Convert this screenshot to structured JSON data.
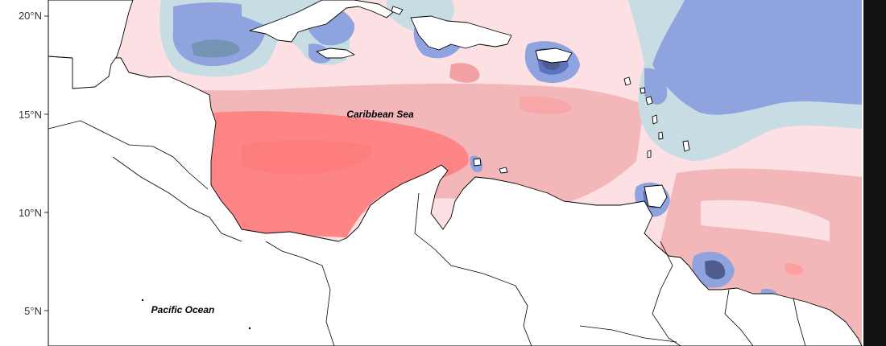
{
  "map": {
    "latitude_ticks": [
      "20°N",
      "15°N",
      "10°N",
      "5°N"
    ],
    "labels": {
      "caribbean": "Caribbean Sea",
      "pacific": "Pacific Ocean"
    },
    "colors": {
      "background": "#ffffff",
      "frame": "#000000",
      "pos_1": "#fde0e3",
      "pos_2": "#f3b7b9",
      "pos_3": "#fe8585",
      "neg_1": "#c7dde3",
      "neg_2": "#8fa3df",
      "neg_3": "#5a74c0",
      "neg_4": "#4f5c8e",
      "land": "#ffffff",
      "coast": "#000000"
    }
  }
}
